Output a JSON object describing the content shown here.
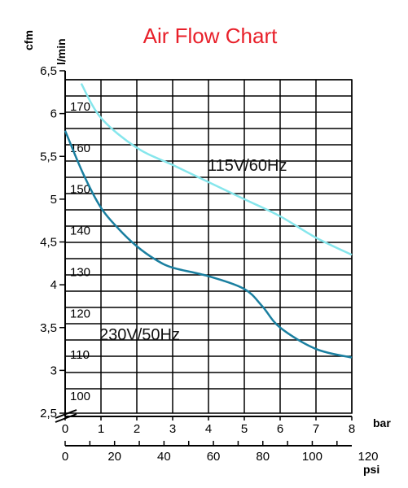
{
  "chart_data": {
    "type": "line",
    "title": "Air Flow Chart",
    "left_axis_label": "cfm",
    "left_axis_ticks": [
      "6,5",
      "6",
      "5,5",
      "5",
      "4,5",
      "4",
      "3,5",
      "3",
      "2,5"
    ],
    "left_axis_range": [
      2.5,
      6.5
    ],
    "inner_axis_label": "l/min",
    "inner_axis_ticks": [
      "170",
      "160",
      "150",
      "140",
      "130",
      "120",
      "110",
      "100"
    ],
    "bar_axis_label": "bar",
    "bar_axis_ticks": [
      "0",
      "1",
      "2",
      "3",
      "4",
      "5",
      "6",
      "7",
      "8"
    ],
    "x_range": [
      0,
      8
    ],
    "psi_axis_label": "psi",
    "psi_axis_ticks": [
      "0",
      "20",
      "40",
      "60",
      "80",
      "100",
      "120"
    ],
    "grid": true,
    "series": [
      {
        "name": "115V/60Hz",
        "color": "#86e6ec",
        "x": [
          0.45,
          1,
          2,
          3,
          4,
          5,
          6,
          7,
          8
        ],
        "y": [
          6.35,
          5.95,
          5.6,
          5.4,
          5.2,
          5.0,
          4.8,
          4.55,
          4.35
        ]
      },
      {
        "name": "230V/50Hz",
        "color": "#1a7fa0",
        "x": [
          0,
          0.5,
          1,
          1.5,
          2,
          2.5,
          3,
          4,
          5,
          5.5,
          6,
          7,
          8
        ],
        "y": [
          5.8,
          5.3,
          4.9,
          4.65,
          4.45,
          4.3,
          4.2,
          4.1,
          3.95,
          3.75,
          3.5,
          3.25,
          3.15
        ]
      }
    ]
  }
}
